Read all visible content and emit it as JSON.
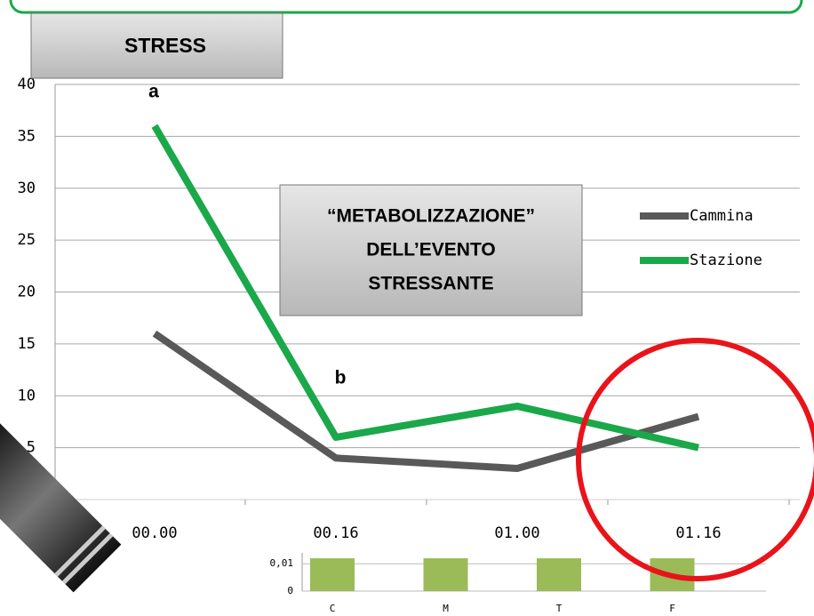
{
  "chart_data": [
    {
      "type": "line",
      "annotations": [
        "STRESS",
        "a",
        "b",
        "“METABOLIZZAZIONE”",
        "DELL’EVENTO",
        "STRESSANTE"
      ],
      "categories": [
        "00.00",
        "00.16",
        "01.00",
        "01.16"
      ],
      "series": [
        {
          "name": "Cammina",
          "color": "#595959",
          "values": [
            16,
            4,
            3,
            8
          ]
        },
        {
          "name": "Stazione",
          "color": "#1aa84a",
          "values": [
            36,
            6,
            9,
            5
          ]
        }
      ],
      "ylim": [
        0,
        40
      ],
      "yticks": [
        5,
        10,
        15,
        20,
        25,
        30,
        35,
        40
      ],
      "grid": true,
      "legend": "right"
    },
    {
      "type": "bar",
      "categories": [
        "C",
        "M",
        "T",
        "F"
      ],
      "values": [
        0.012,
        0.012,
        0.012,
        0.012
      ],
      "color": "#9bbb59",
      "ylim": [
        0,
        0.013
      ],
      "yticks": [
        0,
        {
          "value": 0.01,
          "label": "0,01"
        }
      ],
      "grid": true
    }
  ]
}
